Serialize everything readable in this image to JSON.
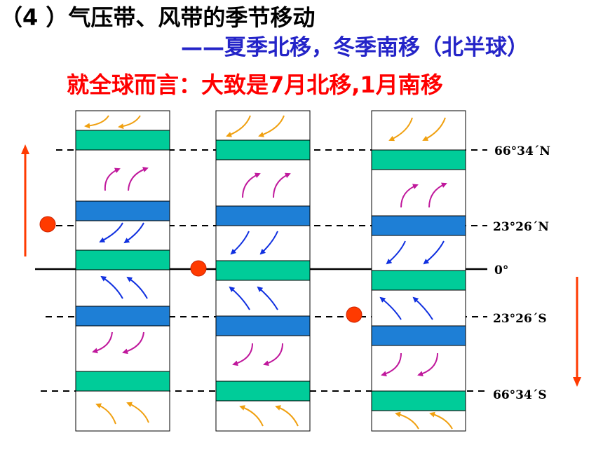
{
  "title": "（4 ）气压带、风带的季节移动",
  "subtitle": "——夏季北移，冬季南移（北半球）",
  "note": "就全球而言：大致是7月北移,1月南移",
  "latitudes": [
    {
      "id": "lat-66N",
      "label": "66°34´N"
    },
    {
      "id": "lat-23N",
      "label": "23°26´N"
    },
    {
      "id": "lat-0",
      "label": "0°"
    },
    {
      "id": "lat-23S",
      "label": "23°26´S"
    },
    {
      "id": "lat-66S",
      "label": "66°34´S"
    }
  ],
  "colors": {
    "low_pressure_belt": "#00cc99",
    "high_pressure_belt": "#1e7fd6",
    "easterlies_arrow": "#f0a010",
    "westerlies_arrow": "#c0189c",
    "trade_wind_arrow": "#1030e0",
    "sun_point": "#ff3a00",
    "shift_arrow": "#ff3a00"
  }
}
